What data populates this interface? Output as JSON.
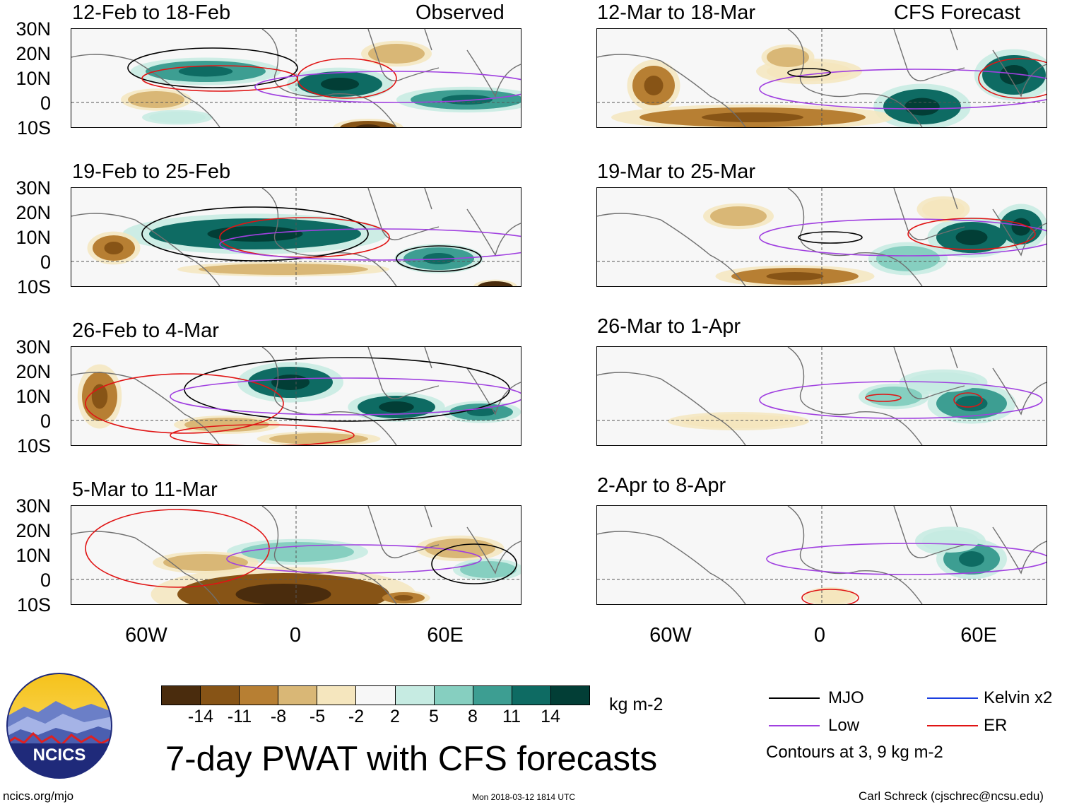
{
  "panels": [
    {
      "title": "12-Feb to 18-Feb",
      "tag": "Observed"
    },
    {
      "title": "19-Feb to 25-Feb",
      "tag": ""
    },
    {
      "title": "26-Feb to 4-Mar",
      "tag": ""
    },
    {
      "title": "5-Mar to 11-Mar",
      "tag": ""
    },
    {
      "title": "12-Mar to 18-Mar",
      "tag": "CFS Forecast"
    },
    {
      "title": "19-Mar to 25-Mar",
      "tag": ""
    },
    {
      "title": "26-Mar to 1-Apr",
      "tag": ""
    },
    {
      "title": "2-Apr to 8-Apr",
      "tag": ""
    }
  ],
  "lat_labels": [
    "30N",
    "20N",
    "10N",
    "0",
    "10S"
  ],
  "lon_labels": [
    "60W",
    "0",
    "60E"
  ],
  "colorbar": {
    "labels": [
      "-14",
      "-11",
      "-8",
      "-5",
      "-2",
      "2",
      "5",
      "8",
      "11",
      "14"
    ],
    "units": "kg m-2",
    "colors": [
      "#4a2c0d",
      "#875416",
      "#b77f33",
      "#d9b776",
      "#f5e6be",
      "#f7f7f7",
      "#c6ebe2",
      "#86cfc0",
      "#3d9e92",
      "#0e6b63",
      "#023e36"
    ]
  },
  "legend": {
    "items": [
      {
        "label": "MJO",
        "color": "#000000"
      },
      {
        "label": "Kelvin x2",
        "color": "#1b3fe0"
      },
      {
        "label": "Low",
        "color": "#a040e0"
      },
      {
        "label": "ER",
        "color": "#e01414"
      }
    ],
    "note": "Contours at 3, 9 kg m-2"
  },
  "logo_text": "NCICS",
  "main_title": "7-day PWAT with CFS forecasts",
  "footer": {
    "left": "ncics.org/mjo",
    "center": "Mon 2018-03-12 1814 UTC",
    "right": "Carl Schreck (cjschrec@ncsu.edu)"
  }
}
